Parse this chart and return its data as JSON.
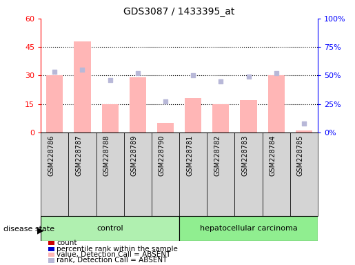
{
  "title": "GDS3087 / 1433395_at",
  "samples": [
    "GSM228786",
    "GSM228787",
    "GSM228788",
    "GSM228789",
    "GSM228790",
    "GSM228781",
    "GSM228782",
    "GSM228783",
    "GSM228784",
    "GSM228785"
  ],
  "bar_values": [
    30,
    48,
    15,
    29,
    5,
    18,
    15,
    17,
    30,
    1
  ],
  "blue_squares": [
    53,
    55,
    46,
    52,
    27,
    50,
    45,
    49,
    52,
    8
  ],
  "ylim_left": [
    0,
    60
  ],
  "ylim_right": [
    0,
    100
  ],
  "yticks_left": [
    0,
    15,
    30,
    45,
    60
  ],
  "ytick_labels_left": [
    "0",
    "15",
    "30",
    "45",
    "60"
  ],
  "yticks_right": [
    0,
    25,
    50,
    75,
    100
  ],
  "ytick_labels_right": [
    "0%",
    "25%",
    "50%",
    "75%",
    "100%"
  ],
  "absent_bar_color": "#ffb6b6",
  "absent_square_color": "#b8b8d8",
  "bg_color": "#ffffff",
  "grid_color": "#000000",
  "gray_box_color": "#d4d4d4",
  "control_color": "#b0f0b0",
  "cancer_color": "#90ee90",
  "legend_items": [
    {
      "color": "#cc0000",
      "label": "count"
    },
    {
      "color": "#0000cc",
      "label": "percentile rank within the sample"
    },
    {
      "color": "#ffb6b6",
      "label": "value, Detection Call = ABSENT"
    },
    {
      "color": "#b8b8d8",
      "label": "rank, Detection Call = ABSENT"
    }
  ],
  "control_group": {
    "label": "control",
    "start": 0,
    "end": 5
  },
  "cancer_group": {
    "label": "hepatocellular carcinoma",
    "start": 5,
    "end": 10
  }
}
